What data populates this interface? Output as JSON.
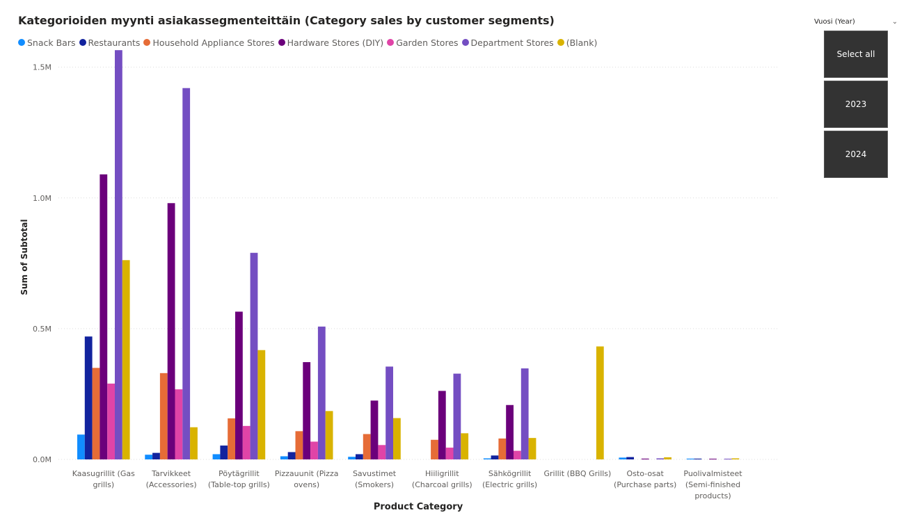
{
  "chart_data": {
    "type": "bar",
    "title": "Kategorioiden myynti asiakassegmenteittäin (Category sales by customer segments)",
    "xlabel": "Product Category",
    "ylabel": "Sum of Subtotal",
    "ylim": [
      0,
      1.6
    ],
    "yticks": [
      0,
      0.5,
      1.0,
      1.5
    ],
    "ytick_labels": [
      "0.0M",
      "0.5M",
      "1.0M",
      "1.5M"
    ],
    "grid": true,
    "legend_position": "top-left",
    "categories": [
      [
        "Kaasugrillit (Gas",
        "grills)"
      ],
      [
        "Tarvikkeet",
        "(Accessories)"
      ],
      [
        "Pöytägrillit",
        "(Table-top grills)"
      ],
      [
        "Pizzauunit (Pizza",
        "ovens)"
      ],
      [
        "Savustimet",
        "(Smokers)"
      ],
      [
        "Hiiligrillit",
        "(Charcoal grills)"
      ],
      [
        "Sähkögrillit",
        "(Electric grills)"
      ],
      [
        "Grillit (BBQ Grills)"
      ],
      [
        "Osto-osat",
        "(Purchase parts)"
      ],
      [
        "Puolivalmisteet",
        "(Semi-finished",
        "products)"
      ]
    ],
    "series": [
      {
        "name": "Snack Bars",
        "color": "#118DFF",
        "values": [
          0.095,
          0.018,
          0.02,
          0.012,
          0.01,
          0,
          0.004,
          0,
          0.007,
          0.003
        ]
      },
      {
        "name": "Restaurants",
        "color": "#12239E",
        "values": [
          0.47,
          0.025,
          0.053,
          0.028,
          0.02,
          0,
          0.015,
          0,
          0.009,
          0.003
        ]
      },
      {
        "name": "Household Appliance Stores",
        "color": "#E66C37",
        "values": [
          0.35,
          0.33,
          0.157,
          0.108,
          0.097,
          0.075,
          0.08,
          0,
          0,
          0
        ]
      },
      {
        "name": "Hardware Stores (DIY)",
        "color": "#6B007B",
        "values": [
          1.09,
          0.98,
          0.565,
          0.372,
          0.225,
          0.262,
          0.208,
          0,
          0.003,
          0.002
        ]
      },
      {
        "name": "Garden Stores",
        "color": "#E044A7",
        "values": [
          0.29,
          0.268,
          0.128,
          0.068,
          0.055,
          0.045,
          0.033,
          0,
          0,
          0
        ]
      },
      {
        "name": "Department Stores",
        "color": "#744EC2",
        "values": [
          1.565,
          1.42,
          0.79,
          0.508,
          0.355,
          0.328,
          0.348,
          0,
          0.004,
          0.002
        ]
      },
      {
        "name": "(Blank)",
        "color": "#D9B300",
        "values": [
          0.762,
          0.123,
          0.418,
          0.185,
          0.158,
          0.1,
          0.082,
          0.432,
          0.008,
          0.004
        ]
      }
    ]
  },
  "slicer": {
    "title": "Vuosi (Year)",
    "chevron_icon": "chevron-down-icon",
    "items": [
      "Select all",
      "2023",
      "2024"
    ]
  }
}
